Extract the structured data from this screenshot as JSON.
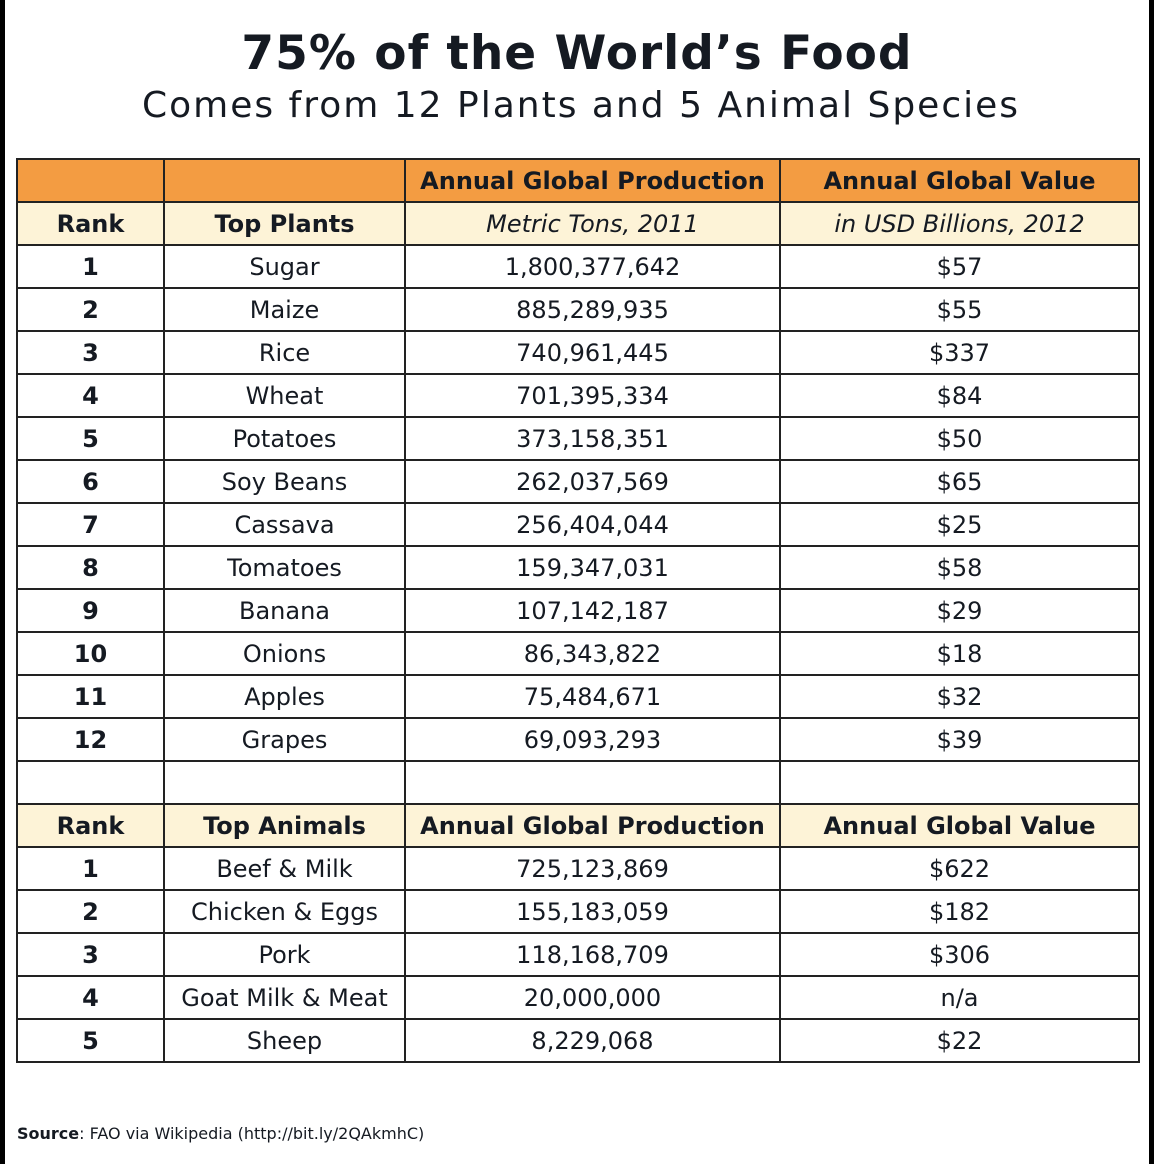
{
  "title": "75% of the World’s Food",
  "subtitle": "Comes from 12 Plants and 5 Animal Species",
  "header": {
    "production": "Annual Global Production",
    "value": "Annual Global Value",
    "rank": "Rank",
    "plants": "Top Plants",
    "production_unit": "Metric Tons, 2011",
    "value_unit": "in USD Billions, 2012",
    "animals": "Top Animals"
  },
  "plants": [
    {
      "rank": "1",
      "name": "Sugar",
      "production": "1,800,377,642",
      "value": "$57"
    },
    {
      "rank": "2",
      "name": "Maize",
      "production": "885,289,935",
      "value": "$55"
    },
    {
      "rank": "3",
      "name": "Rice",
      "production": "740,961,445",
      "value": "$337"
    },
    {
      "rank": "4",
      "name": "Wheat",
      "production": "701,395,334",
      "value": "$84"
    },
    {
      "rank": "5",
      "name": "Potatoes",
      "production": "373,158,351",
      "value": "$50"
    },
    {
      "rank": "6",
      "name": "Soy Beans",
      "production": "262,037,569",
      "value": "$65"
    },
    {
      "rank": "7",
      "name": "Cassava",
      "production": "256,404,044",
      "value": "$25"
    },
    {
      "rank": "8",
      "name": "Tomatoes",
      "production": "159,347,031",
      "value": "$58"
    },
    {
      "rank": "9",
      "name": "Banana",
      "production": "107,142,187",
      "value": "$29"
    },
    {
      "rank": "10",
      "name": "Onions",
      "production": "86,343,822",
      "value": "$18"
    },
    {
      "rank": "11",
      "name": "Apples",
      "production": "75,484,671",
      "value": "$32"
    },
    {
      "rank": "12",
      "name": "Grapes",
      "production": "69,093,293",
      "value": "$39"
    }
  ],
  "animals": [
    {
      "rank": "1",
      "name": "Beef & Milk",
      "production": "725,123,869",
      "value": "$622"
    },
    {
      "rank": "2",
      "name": "Chicken & Eggs",
      "production": "155,183,059",
      "value": "$182"
    },
    {
      "rank": "3",
      "name": "Pork",
      "production": "118,168,709",
      "value": "$306"
    },
    {
      "rank": "4",
      "name": "Goat Milk & Meat",
      "production": "20,000,000",
      "value": "n/a"
    },
    {
      "rank": "5",
      "name": "Sheep",
      "production": "8,229,068",
      "value": "$22"
    }
  ],
  "source": {
    "label": "Source",
    "text": ": FAO via Wikipedia (http://bit.ly/2QAkmhC)"
  },
  "colors": {
    "header_band": "#f39c42",
    "subheader": "#fdf3d7",
    "text": "#151a22"
  }
}
